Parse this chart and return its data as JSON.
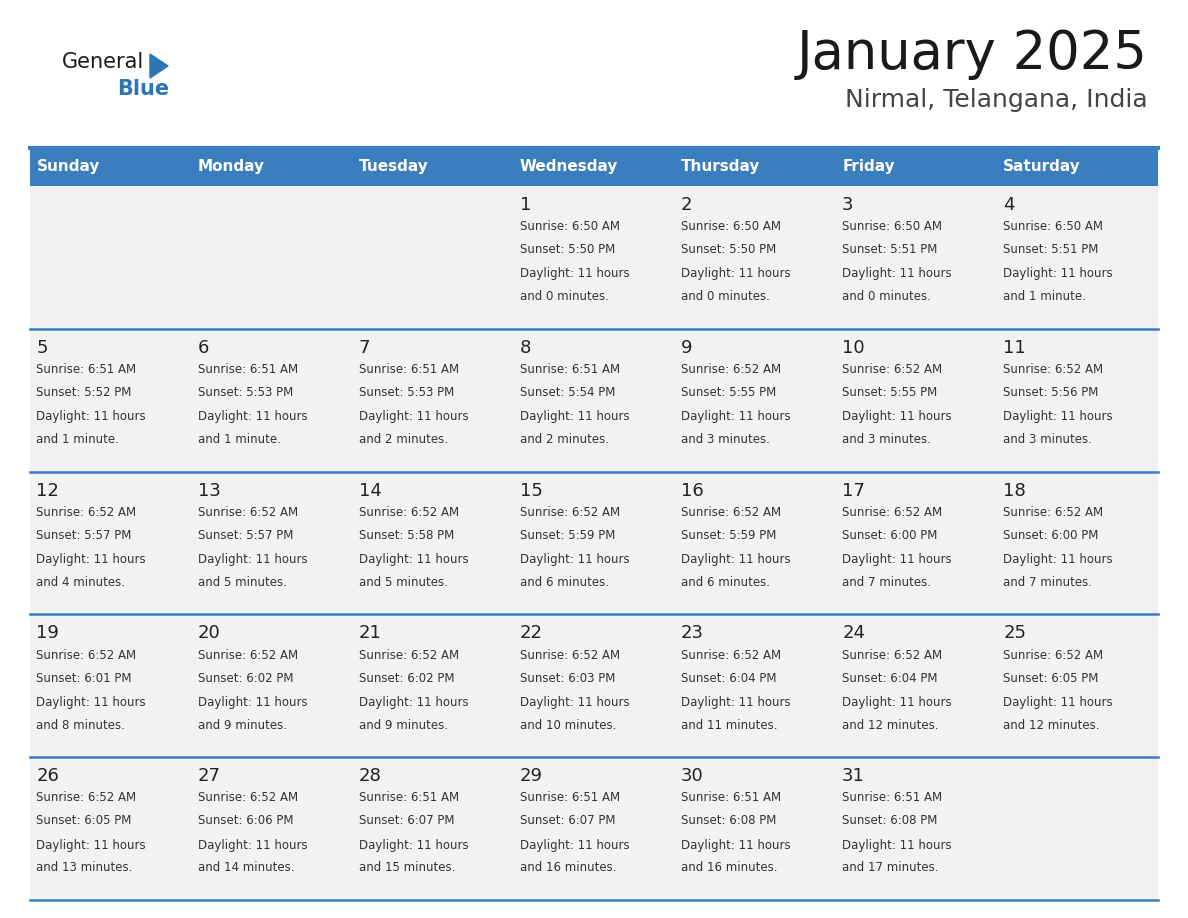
{
  "title": "January 2025",
  "subtitle": "Nirmal, Telangana, India",
  "header_color": "#3A7EBF",
  "header_text_color": "#FFFFFF",
  "cell_bg_color": "#F2F2F2",
  "line_color": "#3A7EBF",
  "days_of_week": [
    "Sunday",
    "Monday",
    "Tuesday",
    "Wednesday",
    "Thursday",
    "Friday",
    "Saturday"
  ],
  "calendar_data": [
    [
      {
        "day": "",
        "sunrise": "",
        "sunset": "",
        "daylight_line1": "",
        "daylight_line2": ""
      },
      {
        "day": "",
        "sunrise": "",
        "sunset": "",
        "daylight_line1": "",
        "daylight_line2": ""
      },
      {
        "day": "",
        "sunrise": "",
        "sunset": "",
        "daylight_line1": "",
        "daylight_line2": ""
      },
      {
        "day": "1",
        "sunrise": "Sunrise: 6:50 AM",
        "sunset": "Sunset: 5:50 PM",
        "daylight_line1": "Daylight: 11 hours",
        "daylight_line2": "and 0 minutes."
      },
      {
        "day": "2",
        "sunrise": "Sunrise: 6:50 AM",
        "sunset": "Sunset: 5:50 PM",
        "daylight_line1": "Daylight: 11 hours",
        "daylight_line2": "and 0 minutes."
      },
      {
        "day": "3",
        "sunrise": "Sunrise: 6:50 AM",
        "sunset": "Sunset: 5:51 PM",
        "daylight_line1": "Daylight: 11 hours",
        "daylight_line2": "and 0 minutes."
      },
      {
        "day": "4",
        "sunrise": "Sunrise: 6:50 AM",
        "sunset": "Sunset: 5:51 PM",
        "daylight_line1": "Daylight: 11 hours",
        "daylight_line2": "and 1 minute."
      }
    ],
    [
      {
        "day": "5",
        "sunrise": "Sunrise: 6:51 AM",
        "sunset": "Sunset: 5:52 PM",
        "daylight_line1": "Daylight: 11 hours",
        "daylight_line2": "and 1 minute."
      },
      {
        "day": "6",
        "sunrise": "Sunrise: 6:51 AM",
        "sunset": "Sunset: 5:53 PM",
        "daylight_line1": "Daylight: 11 hours",
        "daylight_line2": "and 1 minute."
      },
      {
        "day": "7",
        "sunrise": "Sunrise: 6:51 AM",
        "sunset": "Sunset: 5:53 PM",
        "daylight_line1": "Daylight: 11 hours",
        "daylight_line2": "and 2 minutes."
      },
      {
        "day": "8",
        "sunrise": "Sunrise: 6:51 AM",
        "sunset": "Sunset: 5:54 PM",
        "daylight_line1": "Daylight: 11 hours",
        "daylight_line2": "and 2 minutes."
      },
      {
        "day": "9",
        "sunrise": "Sunrise: 6:52 AM",
        "sunset": "Sunset: 5:55 PM",
        "daylight_line1": "Daylight: 11 hours",
        "daylight_line2": "and 3 minutes."
      },
      {
        "day": "10",
        "sunrise": "Sunrise: 6:52 AM",
        "sunset": "Sunset: 5:55 PM",
        "daylight_line1": "Daylight: 11 hours",
        "daylight_line2": "and 3 minutes."
      },
      {
        "day": "11",
        "sunrise": "Sunrise: 6:52 AM",
        "sunset": "Sunset: 5:56 PM",
        "daylight_line1": "Daylight: 11 hours",
        "daylight_line2": "and 3 minutes."
      }
    ],
    [
      {
        "day": "12",
        "sunrise": "Sunrise: 6:52 AM",
        "sunset": "Sunset: 5:57 PM",
        "daylight_line1": "Daylight: 11 hours",
        "daylight_line2": "and 4 minutes."
      },
      {
        "day": "13",
        "sunrise": "Sunrise: 6:52 AM",
        "sunset": "Sunset: 5:57 PM",
        "daylight_line1": "Daylight: 11 hours",
        "daylight_line2": "and 5 minutes."
      },
      {
        "day": "14",
        "sunrise": "Sunrise: 6:52 AM",
        "sunset": "Sunset: 5:58 PM",
        "daylight_line1": "Daylight: 11 hours",
        "daylight_line2": "and 5 minutes."
      },
      {
        "day": "15",
        "sunrise": "Sunrise: 6:52 AM",
        "sunset": "Sunset: 5:59 PM",
        "daylight_line1": "Daylight: 11 hours",
        "daylight_line2": "and 6 minutes."
      },
      {
        "day": "16",
        "sunrise": "Sunrise: 6:52 AM",
        "sunset": "Sunset: 5:59 PM",
        "daylight_line1": "Daylight: 11 hours",
        "daylight_line2": "and 6 minutes."
      },
      {
        "day": "17",
        "sunrise": "Sunrise: 6:52 AM",
        "sunset": "Sunset: 6:00 PM",
        "daylight_line1": "Daylight: 11 hours",
        "daylight_line2": "and 7 minutes."
      },
      {
        "day": "18",
        "sunrise": "Sunrise: 6:52 AM",
        "sunset": "Sunset: 6:00 PM",
        "daylight_line1": "Daylight: 11 hours",
        "daylight_line2": "and 7 minutes."
      }
    ],
    [
      {
        "day": "19",
        "sunrise": "Sunrise: 6:52 AM",
        "sunset": "Sunset: 6:01 PM",
        "daylight_line1": "Daylight: 11 hours",
        "daylight_line2": "and 8 minutes."
      },
      {
        "day": "20",
        "sunrise": "Sunrise: 6:52 AM",
        "sunset": "Sunset: 6:02 PM",
        "daylight_line1": "Daylight: 11 hours",
        "daylight_line2": "and 9 minutes."
      },
      {
        "day": "21",
        "sunrise": "Sunrise: 6:52 AM",
        "sunset": "Sunset: 6:02 PM",
        "daylight_line1": "Daylight: 11 hours",
        "daylight_line2": "and 9 minutes."
      },
      {
        "day": "22",
        "sunrise": "Sunrise: 6:52 AM",
        "sunset": "Sunset: 6:03 PM",
        "daylight_line1": "Daylight: 11 hours",
        "daylight_line2": "and 10 minutes."
      },
      {
        "day": "23",
        "sunrise": "Sunrise: 6:52 AM",
        "sunset": "Sunset: 6:04 PM",
        "daylight_line1": "Daylight: 11 hours",
        "daylight_line2": "and 11 minutes."
      },
      {
        "day": "24",
        "sunrise": "Sunrise: 6:52 AM",
        "sunset": "Sunset: 6:04 PM",
        "daylight_line1": "Daylight: 11 hours",
        "daylight_line2": "and 12 minutes."
      },
      {
        "day": "25",
        "sunrise": "Sunrise: 6:52 AM",
        "sunset": "Sunset: 6:05 PM",
        "daylight_line1": "Daylight: 11 hours",
        "daylight_line2": "and 12 minutes."
      }
    ],
    [
      {
        "day": "26",
        "sunrise": "Sunrise: 6:52 AM",
        "sunset": "Sunset: 6:05 PM",
        "daylight_line1": "Daylight: 11 hours",
        "daylight_line2": "and 13 minutes."
      },
      {
        "day": "27",
        "sunrise": "Sunrise: 6:52 AM",
        "sunset": "Sunset: 6:06 PM",
        "daylight_line1": "Daylight: 11 hours",
        "daylight_line2": "and 14 minutes."
      },
      {
        "day": "28",
        "sunrise": "Sunrise: 6:51 AM",
        "sunset": "Sunset: 6:07 PM",
        "daylight_line1": "Daylight: 11 hours",
        "daylight_line2": "and 15 minutes."
      },
      {
        "day": "29",
        "sunrise": "Sunrise: 6:51 AM",
        "sunset": "Sunset: 6:07 PM",
        "daylight_line1": "Daylight: 11 hours",
        "daylight_line2": "and 16 minutes."
      },
      {
        "day": "30",
        "sunrise": "Sunrise: 6:51 AM",
        "sunset": "Sunset: 6:08 PM",
        "daylight_line1": "Daylight: 11 hours",
        "daylight_line2": "and 16 minutes."
      },
      {
        "day": "31",
        "sunrise": "Sunrise: 6:51 AM",
        "sunset": "Sunset: 6:08 PM",
        "daylight_line1": "Daylight: 11 hours",
        "daylight_line2": "and 17 minutes."
      },
      {
        "day": "",
        "sunrise": "",
        "sunset": "",
        "daylight_line1": "",
        "daylight_line2": ""
      }
    ]
  ]
}
